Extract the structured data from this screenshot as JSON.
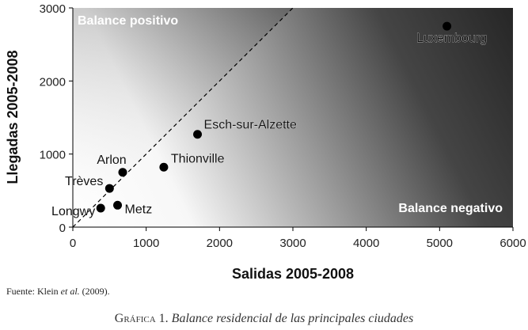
{
  "chart_data": {
    "type": "scatter",
    "xlabel": "Salidas 2005-2008",
    "ylabel": "Llegadas 2005-2008",
    "xlim": [
      0,
      6000
    ],
    "ylim": [
      0,
      3000
    ],
    "xticks": [
      0,
      1000,
      2000,
      3000,
      4000,
      5000,
      6000
    ],
    "yticks": [
      0,
      1000,
      2000,
      3000
    ],
    "grid": false,
    "reference_line": {
      "style": "dashed",
      "description": "y = x",
      "x": [
        0,
        3000
      ],
      "y": [
        0,
        3000
      ]
    },
    "region_labels": {
      "upper_left": "Balance positivo",
      "lower_right": "Balance negativo"
    },
    "points": [
      {
        "label": "Luxembourg",
        "x": 5100,
        "y": 2750
      },
      {
        "label": "Esch-sur-Alzette",
        "x": 1700,
        "y": 1270
      },
      {
        "label": "Thionville",
        "x": 1240,
        "y": 820
      },
      {
        "label": "Arlon",
        "x": 680,
        "y": 750
      },
      {
        "label": "Trèves",
        "x": 500,
        "y": 530
      },
      {
        "label": "Longwy",
        "x": 380,
        "y": 260
      },
      {
        "label": "Metz",
        "x": 610,
        "y": 300
      }
    ]
  },
  "source": {
    "prefix": "Fuente",
    "text_before": ": Klein ",
    "italic": "et al.",
    "text_after": " (2009)."
  },
  "caption": {
    "prefix": "Gráfica 1.",
    "text": "Balance residencial de las principales ciudades"
  }
}
